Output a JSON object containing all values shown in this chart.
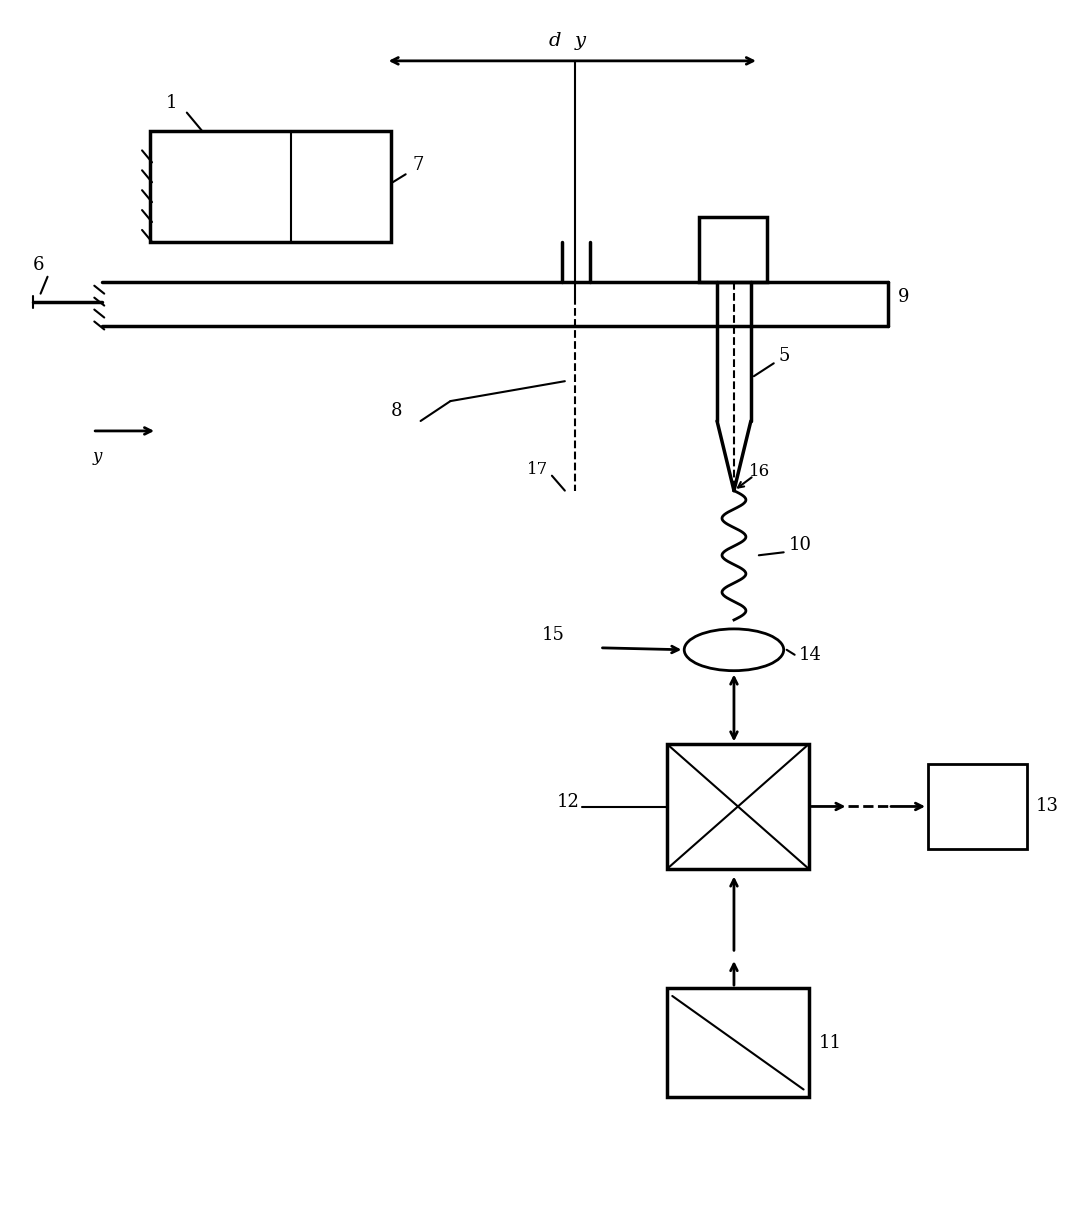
{
  "bg_color": "#ffffff",
  "line_color": "#000000",
  "fig_width": 10.69,
  "fig_height": 12.19,
  "labels": {
    "dy_label": "d",
    "dy_y": "y",
    "label_1": "1",
    "label_5": "5",
    "label_6": "6",
    "label_7": "7",
    "label_8": "8",
    "label_9": "9",
    "label_10": "10",
    "label_11": "11",
    "label_12": "12",
    "label_13": "13",
    "label_14": "14",
    "label_15": "15",
    "label_16": "16",
    "label_17": "17",
    "label_y_axis": "y"
  }
}
